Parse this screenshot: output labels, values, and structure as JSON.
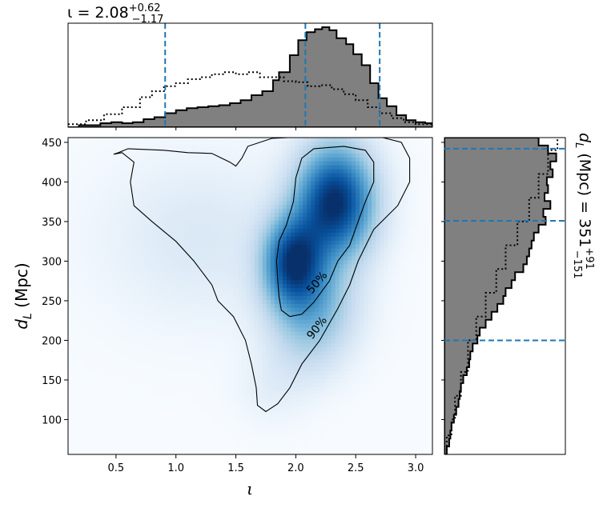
{
  "chart_data": [
    {
      "type": "heatmap",
      "panel": "joint",
      "xlim": [
        0.1,
        3.14
      ],
      "ylim": [
        56,
        456
      ],
      "xlabel": "ι",
      "ylabel": "d_L (Mpc)",
      "x_ticks": [
        0.5,
        1.0,
        1.5,
        2.0,
        2.5,
        3.0
      ],
      "x_tick_labels": [
        "0.5",
        "1.0",
        "1.5",
        "2.0",
        "2.5",
        "3.0"
      ],
      "y_ticks": [
        100,
        150,
        200,
        250,
        300,
        350,
        400,
        450
      ],
      "y_tick_labels": [
        "100",
        "150",
        "200",
        "250",
        "300",
        "350",
        "400",
        "450"
      ],
      "colormap": "Blues",
      "density_peaks": [
        {
          "x": 2.33,
          "y": 375,
          "sx": 0.22,
          "sy": 48,
          "w": 1.0
        },
        {
          "x": 1.98,
          "y": 300,
          "sx": 0.17,
          "sy": 38,
          "w": 0.85
        },
        {
          "x": 2.15,
          "y": 245,
          "sx": 0.25,
          "sy": 40,
          "w": 0.35
        },
        {
          "x": 2.1,
          "y": 190,
          "sx": 0.22,
          "sy": 35,
          "w": 0.12
        },
        {
          "x": 1.2,
          "y": 330,
          "sx": 0.55,
          "sy": 70,
          "w": 0.1
        },
        {
          "x": 1.8,
          "y": 140,
          "sx": 0.2,
          "sy": 30,
          "w": 0.06
        }
      ],
      "contours": [
        {
          "label": "50%",
          "points": [
            [
              1.95,
              230
            ],
            [
              1.88,
              238
            ],
            [
              1.86,
              255
            ],
            [
              1.85,
              275
            ],
            [
              1.84,
              300
            ],
            [
              1.86,
              325
            ],
            [
              1.92,
              345
            ],
            [
              1.98,
              375
            ],
            [
              2.0,
              405
            ],
            [
              2.05,
              430
            ],
            [
              2.15,
              442
            ],
            [
              2.4,
              445
            ],
            [
              2.58,
              440
            ],
            [
              2.65,
              425
            ],
            [
              2.65,
              400
            ],
            [
              2.58,
              375
            ],
            [
              2.52,
              350
            ],
            [
              2.45,
              320
            ],
            [
              2.35,
              300
            ],
            [
              2.28,
              275
            ],
            [
              2.15,
              248
            ],
            [
              2.05,
              233
            ],
            [
              1.95,
              230
            ]
          ]
        },
        {
          "label": "90%",
          "points": [
            [
              1.75,
              110
            ],
            [
              1.68,
              118
            ],
            [
              1.67,
              140
            ],
            [
              1.63,
              170
            ],
            [
              1.58,
              200
            ],
            [
              1.48,
              230
            ],
            [
              1.35,
              250
            ],
            [
              1.3,
              270
            ],
            [
              1.15,
              300
            ],
            [
              1.0,
              325
            ],
            [
              0.8,
              350
            ],
            [
              0.65,
              370
            ],
            [
              0.62,
              400
            ],
            [
              0.65,
              425
            ],
            [
              0.55,
              437
            ],
            [
              0.48,
              435
            ],
            [
              0.52,
              437
            ],
            [
              0.6,
              442
            ],
            [
              0.9,
              440
            ],
            [
              1.1,
              437
            ],
            [
              1.3,
              436
            ],
            [
              1.45,
              425
            ],
            [
              1.5,
              420
            ],
            [
              1.55,
              430
            ],
            [
              1.6,
              445
            ],
            [
              1.8,
              455
            ],
            [
              2.2,
              458
            ],
            [
              2.7,
              457
            ],
            [
              2.88,
              450
            ],
            [
              2.95,
              430
            ],
            [
              2.95,
              400
            ],
            [
              2.85,
              370
            ],
            [
              2.65,
              340
            ],
            [
              2.52,
              300
            ],
            [
              2.45,
              270
            ],
            [
              2.35,
              240
            ],
            [
              2.2,
              200
            ],
            [
              2.05,
              170
            ],
            [
              1.95,
              140
            ],
            [
              1.85,
              120
            ],
            [
              1.75,
              110
            ]
          ]
        }
      ],
      "contour_labels": [
        {
          "text": "50%",
          "x": 2.2,
          "y": 270,
          "angle": -50
        },
        {
          "text": "90%",
          "x": 2.2,
          "y": 213,
          "angle": -52
        }
      ]
    },
    {
      "type": "bar",
      "panel": "top-marginal",
      "title": "ι = 2.08",
      "title_sup": "+0.62",
      "title_sub": "−1.17",
      "xlim": [
        0.1,
        3.14
      ],
      "bin_edges_x": [
        0.1,
        0.19,
        0.28,
        0.37,
        0.46,
        0.55,
        0.64,
        0.73,
        0.82,
        0.91,
        1.0,
        1.09,
        1.18,
        1.27,
        1.36,
        1.45,
        1.54,
        1.63,
        1.72,
        1.81,
        1.86,
        1.95,
        2.02,
        2.09,
        2.16,
        2.22,
        2.28,
        2.34,
        2.42,
        2.48,
        2.55,
        2.62,
        2.69,
        2.76,
        2.84,
        2.92,
        3.0,
        3.08,
        3.14
      ],
      "values": [
        0.0,
        0.02,
        0.02,
        0.04,
        0.05,
        0.04,
        0.05,
        0.08,
        0.1,
        0.14,
        0.17,
        0.19,
        0.2,
        0.21,
        0.22,
        0.24,
        0.27,
        0.32,
        0.36,
        0.47,
        0.55,
        0.72,
        0.87,
        0.95,
        0.98,
        1.0,
        0.97,
        0.89,
        0.83,
        0.73,
        0.62,
        0.44,
        0.29,
        0.21,
        0.12,
        0.07,
        0.05,
        0.04
      ],
      "fill": "#808080",
      "prior_dotted": {
        "x": [
          0.1,
          0.25,
          0.4,
          0.55,
          0.7,
          0.8,
          0.9,
          1.0,
          1.1,
          1.2,
          1.3,
          1.4,
          1.5,
          1.6,
          1.7,
          1.8,
          1.9,
          2.0,
          2.1,
          2.2,
          2.3,
          2.4,
          2.5,
          2.6,
          2.7,
          2.8,
          2.9,
          3.0,
          3.14
        ],
        "y": [
          0.03,
          0.07,
          0.13,
          0.2,
          0.3,
          0.36,
          0.41,
          0.44,
          0.48,
          0.5,
          0.53,
          0.55,
          0.53,
          0.55,
          0.5,
          0.5,
          0.46,
          0.45,
          0.41,
          0.42,
          0.38,
          0.33,
          0.27,
          0.2,
          0.14,
          0.09,
          0.05,
          0.03,
          0.02
        ]
      },
      "dashed_lines": [
        0.91,
        2.08,
        2.7
      ],
      "dashed_color": "#1f77b4"
    },
    {
      "type": "bar",
      "panel": "right-marginal",
      "orientation": "horizontal",
      "title": "d",
      "title_sub_var": "L",
      "title_rest": " (Mpc) = 351",
      "title_sup": "+91",
      "title_sub": "−151",
      "ylim": [
        56,
        456
      ],
      "bin_edges_y": [
        56,
        66,
        76,
        86,
        96,
        106,
        116,
        126,
        136,
        146,
        156,
        166,
        176,
        186,
        196,
        206,
        216,
        226,
        236,
        246,
        256,
        266,
        276,
        286,
        296,
        306,
        316,
        326,
        336,
        346,
        356,
        366,
        376,
        386,
        396,
        406,
        416,
        426,
        436,
        446,
        456
      ],
      "values": [
        0.02,
        0.04,
        0.05,
        0.06,
        0.08,
        0.1,
        0.12,
        0.13,
        0.14,
        0.16,
        0.19,
        0.21,
        0.22,
        0.24,
        0.28,
        0.3,
        0.35,
        0.4,
        0.45,
        0.5,
        0.52,
        0.57,
        0.6,
        0.67,
        0.7,
        0.72,
        0.74,
        0.76,
        0.8,
        0.86,
        0.84,
        0.9,
        0.85,
        0.88,
        0.87,
        0.92,
        0.9,
        0.95,
        0.88,
        0.8
      ],
      "fill": "#808080",
      "prior_dotted": {
        "y": [
          56,
          80,
          100,
          130,
          160,
          200,
          230,
          260,
          290,
          320,
          350,
          380,
          410,
          440,
          456
        ],
        "x": [
          0.02,
          0.06,
          0.09,
          0.14,
          0.2,
          0.27,
          0.35,
          0.44,
          0.52,
          0.62,
          0.72,
          0.8,
          0.88,
          0.96,
          1.0
        ]
      },
      "dashed_lines": [
        200,
        351,
        442
      ],
      "dashed_color": "#1f77b4"
    }
  ]
}
